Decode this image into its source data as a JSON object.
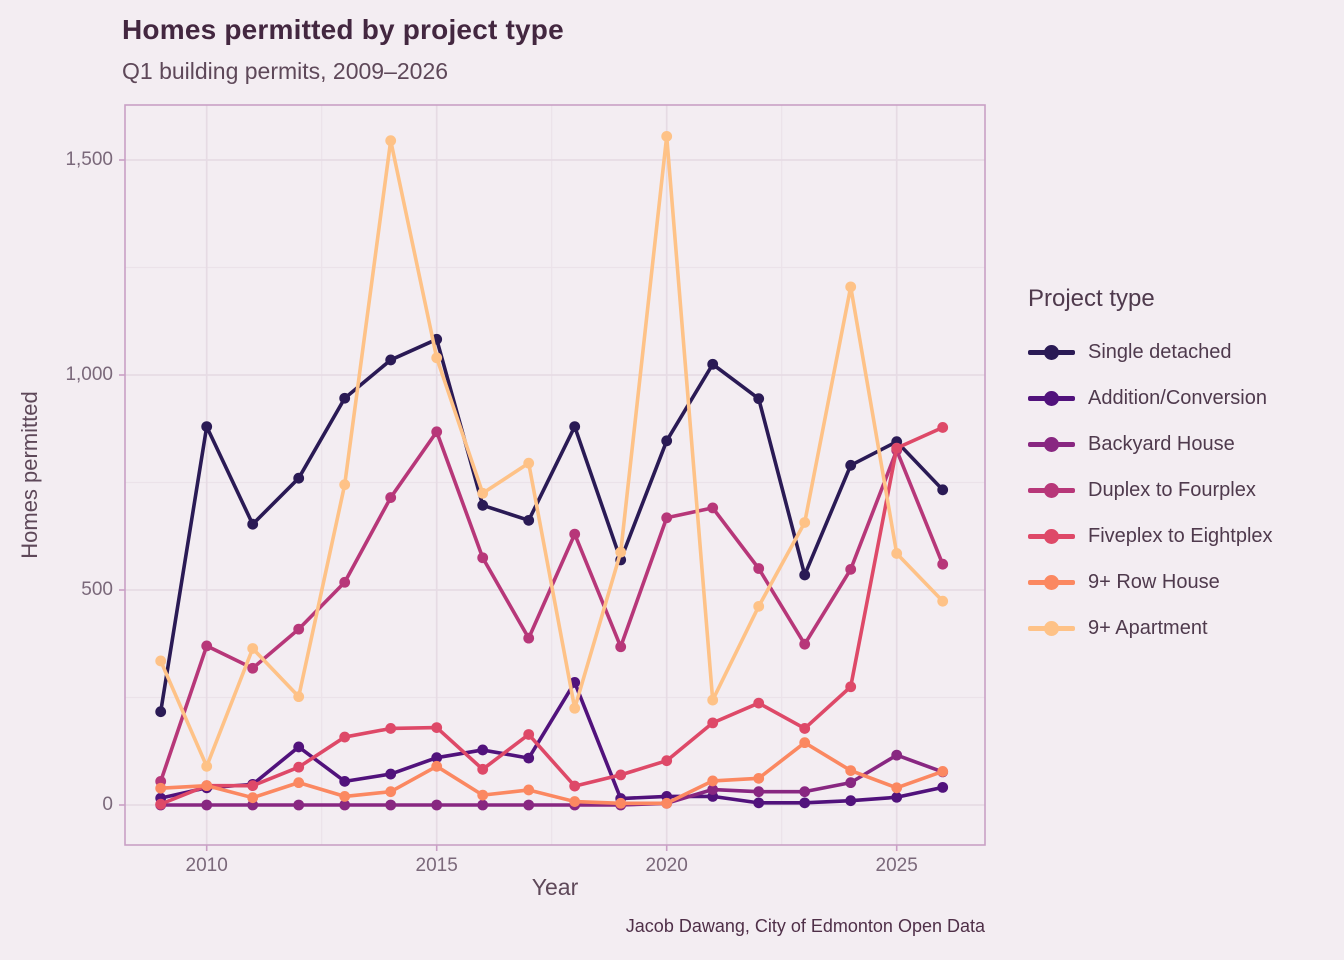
{
  "header": {
    "title": "Homes permitted by project type",
    "subtitle": "Q1 building permits, 2009–2026"
  },
  "caption": "Jacob Dawang, City of Edmonton Open Data",
  "colors": {
    "background": "#f3edf2",
    "panel_border": "#c9a0c5",
    "grid_major": "#e6dbe4",
    "grid_minor": "#ebe2e9",
    "title_text": "#432740",
    "axis_text": "#5e4859",
    "tick_text": "#7a687a"
  },
  "chart_data": {
    "type": "line",
    "title": "Homes permitted by project type",
    "subtitle": "Q1 building permits, 2009–2026",
    "xlabel": "Year",
    "ylabel": "Homes permitted",
    "legend_title": "Project type",
    "legend_position": "right",
    "grid": true,
    "x": [
      2009,
      2010,
      2011,
      2012,
      2013,
      2014,
      2015,
      2016,
      2017,
      2018,
      2019,
      2020,
      2021,
      2022,
      2023,
      2024,
      2025,
      2026
    ],
    "x_ticks": [
      2010,
      2015,
      2020,
      2025
    ],
    "x_tick_labels": [
      "2010",
      "2015",
      "2020",
      "2025"
    ],
    "x_minor": [
      2012.5,
      2017.5,
      2022.5
    ],
    "y_ticks": [
      0,
      500,
      1000,
      1500
    ],
    "y_tick_labels": [
      "0",
      "500",
      "1,000",
      "1,500"
    ],
    "y_minor": [
      250,
      750,
      1250
    ],
    "ylim": [
      -95,
      1630
    ],
    "series": [
      {
        "name": "Single detached",
        "color": "#2a1a55",
        "values": [
          217,
          880,
          653,
          760,
          946,
          1035,
          1083,
          697,
          662,
          880,
          570,
          847,
          1025,
          945,
          535,
          790,
          845,
          733
        ]
      },
      {
        "name": "Addition/Conversion",
        "color": "#51127c",
        "values": [
          16,
          40,
          48,
          135,
          55,
          72,
          110,
          128,
          109,
          285,
          15,
          20,
          20,
          5,
          5,
          10,
          18,
          41
        ]
      },
      {
        "name": "Backyard House",
        "color": "#882781",
        "values": [
          0,
          0,
          0,
          0,
          0,
          0,
          0,
          0,
          0,
          0,
          0,
          4,
          36,
          31,
          31,
          52,
          116,
          77
        ]
      },
      {
        "name": "Duplex to Fourplex",
        "color": "#b73779",
        "values": [
          55,
          370,
          318,
          409,
          518,
          715,
          868,
          575,
          388,
          630,
          368,
          668,
          691,
          550,
          374,
          548,
          825,
          560
        ]
      },
      {
        "name": "Fiveplex to Eightplex",
        "color": "#de4968",
        "values": [
          2,
          45,
          45,
          88,
          158,
          178,
          180,
          83,
          164,
          44,
          70,
          103,
          191,
          237,
          178,
          275,
          830,
          878
        ]
      },
      {
        "name": "9+ Row House",
        "color": "#fb8861",
        "values": [
          39,
          45,
          17,
          52,
          20,
          31,
          90,
          23,
          35,
          8,
          4,
          4,
          56,
          62,
          145,
          80,
          40,
          78
        ]
      },
      {
        "name": "9+ Apartment",
        "color": "#fec287",
        "values": [
          335,
          90,
          364,
          252,
          745,
          1545,
          1040,
          725,
          795,
          225,
          588,
          1555,
          244,
          462,
          657,
          1205,
          585,
          474
        ]
      }
    ]
  }
}
